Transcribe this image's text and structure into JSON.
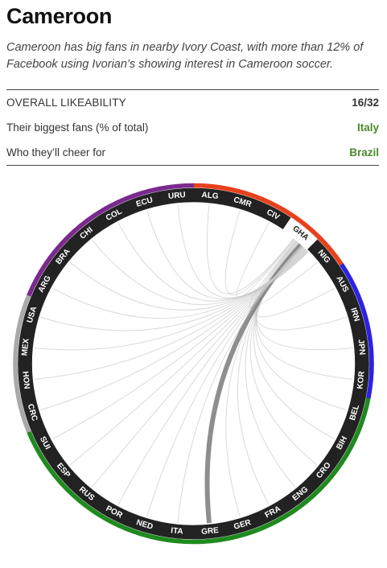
{
  "header": {
    "title": "Cameroon",
    "description": "Cameroon has big fans in nearby Ivory Coast, with more than 12% of Facebook using Ivorian’s showing interest in Cameroon soccer."
  },
  "stats": [
    {
      "label": "OVERALL LIKEABILITY",
      "value": "16/32"
    },
    {
      "label": "Their biggest fans (% of total)",
      "value": "Italy"
    },
    {
      "label": "Who they’ll cheer for",
      "value": "Brazil"
    }
  ],
  "wheel": {
    "highlighted_team": "GHA",
    "teams": [
      "ALG",
      "CMR",
      "CIV",
      "GHA",
      "NIG",
      "AUS",
      "IRN",
      "JPN",
      "KOR",
      "BEL",
      "BIH",
      "CRO",
      "ENG",
      "FRA",
      "GER",
      "GRE",
      "ITA",
      "NED",
      "POR",
      "RUS",
      "ESP",
      "SUI",
      "CRC",
      "HON",
      "MEX",
      "USA",
      "ARG",
      "BRA",
      "CHI",
      "COL",
      "ECU",
      "URU"
    ],
    "group_colors": {
      "africa": "#e8401c",
      "asia": "#2d22e0",
      "europe": "#1f8a1f",
      "north_america": "#a9a9a9",
      "south_america": "#7a2a8e"
    },
    "team_groups": {
      "ALG": "africa",
      "CMR": "africa",
      "CIV": "africa",
      "GHA": "africa",
      "NIG": "africa",
      "AUS": "asia",
      "IRN": "asia",
      "JPN": "asia",
      "KOR": "asia",
      "BEL": "europe",
      "BIH": "europe",
      "CRO": "europe",
      "ENG": "europe",
      "FRA": "europe",
      "GER": "europe",
      "GRE": "europe",
      "ITA": "europe",
      "NED": "europe",
      "POR": "europe",
      "RUS": "europe",
      "ESP": "europe",
      "SUI": "europe",
      "CRC": "north_america",
      "HON": "north_america",
      "MEX": "north_america",
      "USA": "north_america",
      "ARG": "south_america",
      "BRA": "south_america",
      "CHI": "south_america",
      "COL": "south_america",
      "ECU": "south_america",
      "URU": "south_america"
    },
    "strongest_link": "GRE"
  }
}
